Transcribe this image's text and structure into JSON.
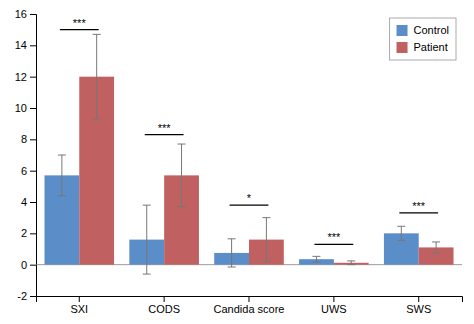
{
  "chart_data": {
    "type": "bar",
    "categories": [
      "SXI",
      "CODS",
      "Candida score",
      "UWS",
      "SWS"
    ],
    "series": [
      {
        "name": "Control",
        "color": "#5B8DC8",
        "values": [
          5.7,
          1.6,
          0.75,
          0.35,
          2.0
        ],
        "errors": [
          1.3,
          2.2,
          0.9,
          0.18,
          0.45
        ]
      },
      {
        "name": "Patient",
        "color": "#C06060",
        "values": [
          12.0,
          5.7,
          1.6,
          0.12,
          1.1
        ],
        "errors": [
          2.7,
          2.0,
          1.4,
          0.12,
          0.35
        ]
      }
    ],
    "annotations": [
      {
        "category": "SXI",
        "label": "***",
        "y": 15.0
      },
      {
        "category": "CODS",
        "label": "***",
        "y": 8.3
      },
      {
        "category": "Candida score",
        "label": "*",
        "y": 3.8
      },
      {
        "category": "UWS",
        "label": "***",
        "y": 1.3
      },
      {
        "category": "SWS",
        "label": "***",
        "y": 3.3
      }
    ],
    "ylim": [
      -2,
      16
    ],
    "yticks": [
      -2,
      0,
      2,
      4,
      6,
      8,
      10,
      12,
      14,
      16
    ],
    "grid": false,
    "legend": "upper right"
  }
}
